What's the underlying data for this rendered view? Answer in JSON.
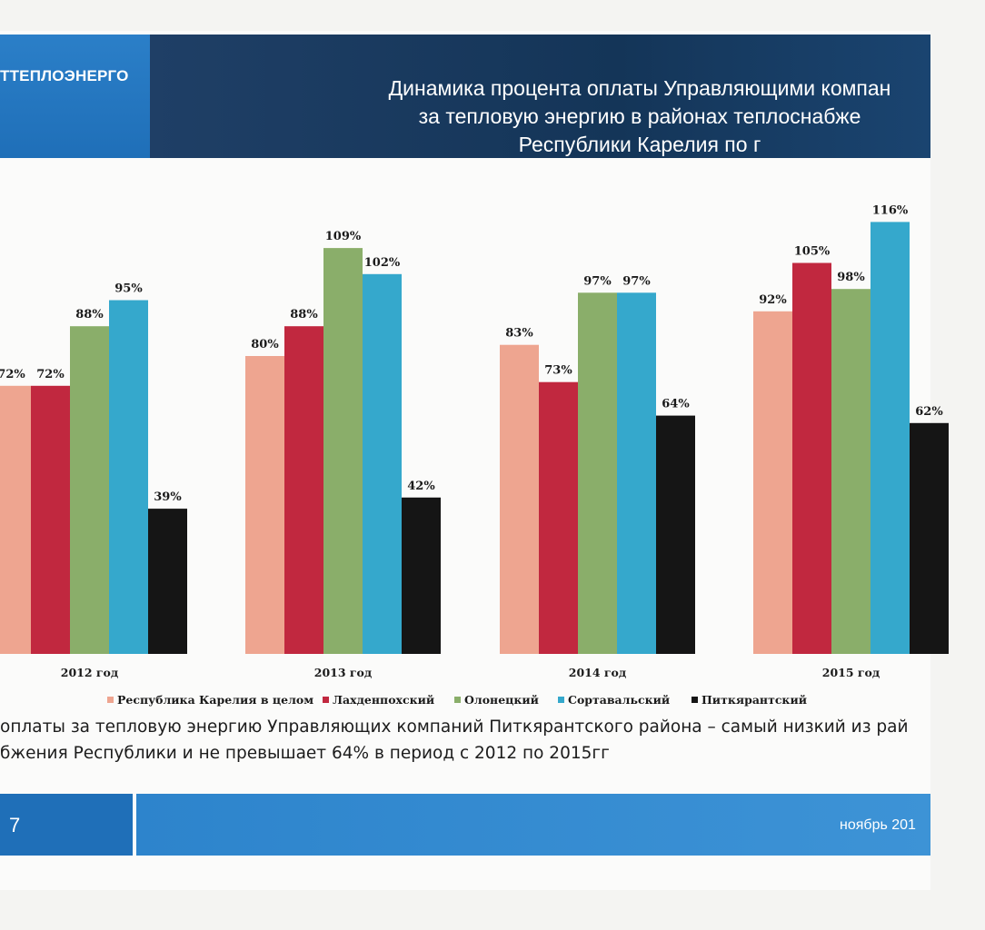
{
  "header": {
    "org_name": "ТТЕПЛОЭНЕРГО",
    "title": "Динамика процента оплаты Управляющими компан\nза тепловую энергию в районах теплоснабже\nРеспублики Карелия по г"
  },
  "chart_data": {
    "type": "bar",
    "categories": [
      "2012 год",
      "2013 год",
      "2014 год",
      "2015 год"
    ],
    "series": [
      {
        "name": "Республика Карелия в целом",
        "color": "#eea590",
        "values": [
          72,
          80,
          83,
          92
        ],
        "labels": [
          "72%",
          "80%",
          "83%",
          "92%"
        ]
      },
      {
        "name": "Лахденпохский",
        "color": "#c1283f",
        "values": [
          72,
          88,
          73,
          105
        ],
        "labels": [
          "72%",
          "88%",
          "73%",
          "105%"
        ]
      },
      {
        "name": "Олонецкий",
        "color": "#8aae6a",
        "values": [
          88,
          109,
          97,
          98
        ],
        "labels": [
          "88%",
          "109%",
          "97%",
          "98%"
        ]
      },
      {
        "name": "Сортавальский",
        "color": "#35a8cc",
        "values": [
          95,
          102,
          97,
          116
        ],
        "labels": [
          "95%",
          "102%",
          "97%",
          "116%"
        ]
      },
      {
        "name": "Питкярантский",
        "color": "#151515",
        "values": [
          39,
          42,
          64,
          62
        ],
        "labels": [
          "39%",
          "42%",
          "64%",
          "62%"
        ]
      }
    ],
    "legend_position": "bottom"
  },
  "note": "оплаты за тепловую энергию Управляющих компаний Питкярантского района – самый низкий из рай\nбжения Республики и не превышает 64% в период с 2012 по 2015гг",
  "footer": {
    "page_number": "7",
    "date": "ноябрь 201"
  }
}
